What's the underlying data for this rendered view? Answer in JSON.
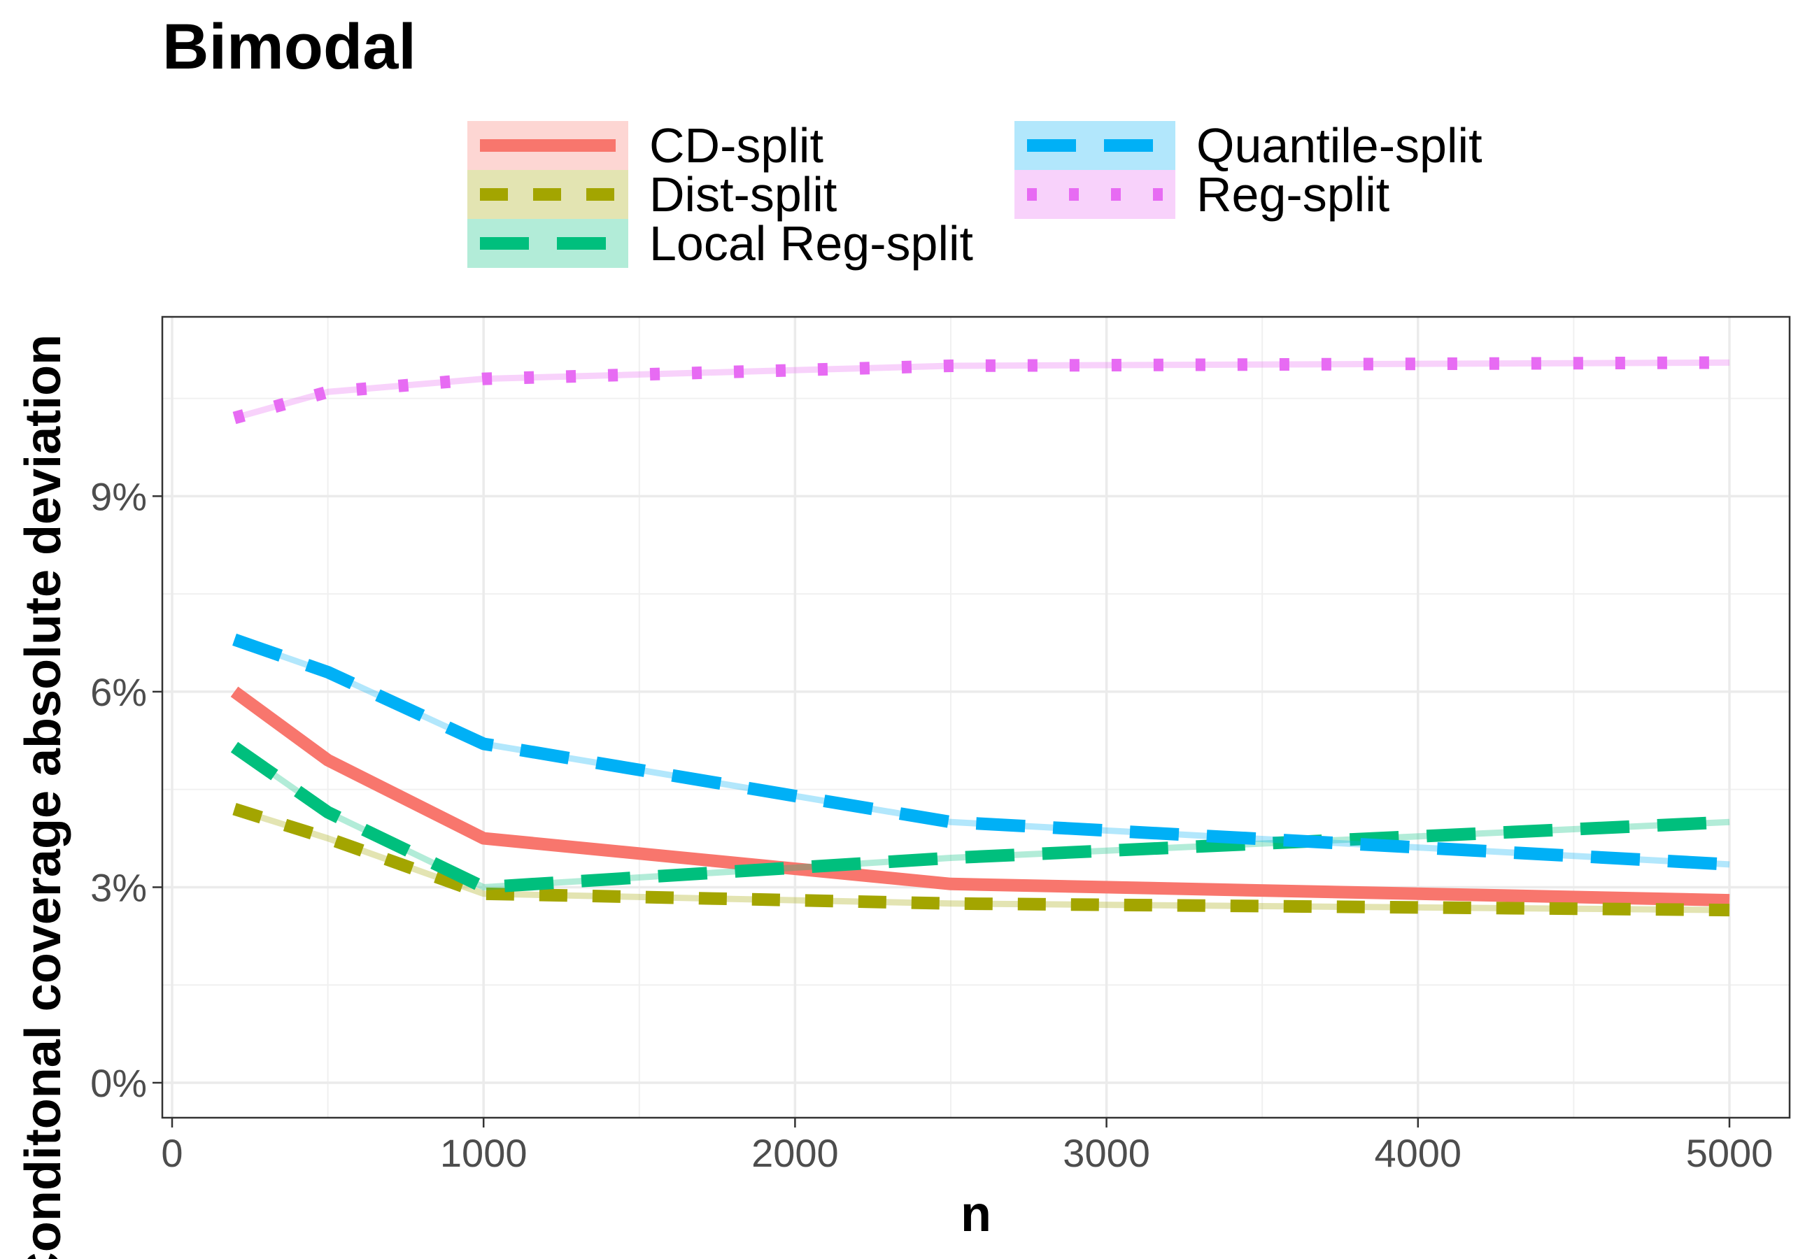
{
  "chart_data": {
    "type": "line",
    "title": "Bimodal",
    "xlabel": "n",
    "ylabel": "Conditonal coverage absolute deviation",
    "xlim": [
      0,
      5000
    ],
    "ylim": [
      0,
      11
    ],
    "x_ticks": [
      0,
      1000,
      2000,
      3000,
      4000,
      5000
    ],
    "x_tick_labels": [
      "0",
      "1000",
      "2000",
      "3000",
      "4000",
      "5000"
    ],
    "y_ticks": [
      0,
      3,
      6,
      9
    ],
    "y_tick_labels": [
      "0%",
      "3%",
      "6%",
      "9%"
    ],
    "grid": true,
    "legend_position": "top",
    "x": [
      200,
      500,
      1000,
      2500,
      5000
    ],
    "series": [
      {
        "name": "CD-split",
        "color": "#F8766D",
        "dash": "solid",
        "values": [
          6.0,
          4.95,
          3.75,
          3.05,
          2.8
        ]
      },
      {
        "name": "Dist-split",
        "color": "#A3A500",
        "dash": "dashed",
        "values": [
          4.2,
          3.75,
          2.9,
          2.75,
          2.65
        ]
      },
      {
        "name": "Local Reg-split",
        "color": "#00BF7D",
        "dash": "longdash",
        "values": [
          5.15,
          4.15,
          3.0,
          3.45,
          4.0
        ]
      },
      {
        "name": "Quantile-split",
        "color": "#00B0F6",
        "dash": "longdash",
        "values": [
          6.8,
          6.3,
          5.2,
          4.0,
          3.35
        ]
      },
      {
        "name": "Reg-split",
        "color": "#E76BF3",
        "dash": "dotted",
        "values": [
          10.2,
          10.6,
          10.8,
          11.0,
          11.05
        ]
      }
    ]
  }
}
